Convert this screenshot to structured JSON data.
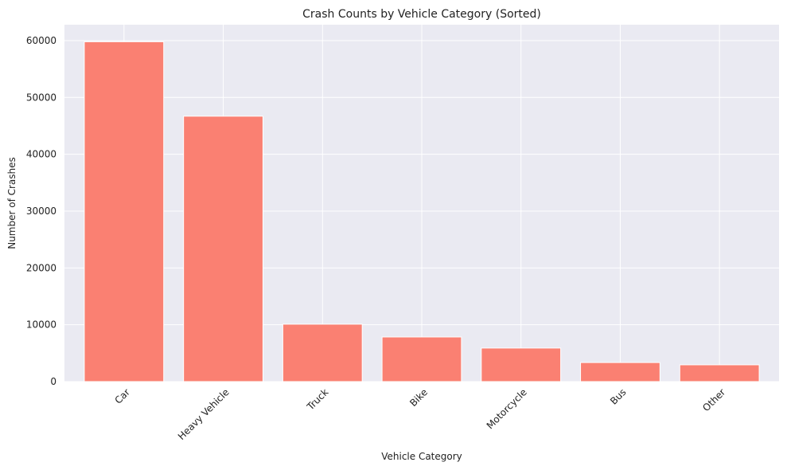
{
  "chart_data": {
    "type": "bar",
    "title": "Crash Counts by Vehicle Category (Sorted)",
    "xlabel": "Vehicle Category",
    "ylabel": "Number of Crashes",
    "categories": [
      "Car",
      "Heavy Vehicle",
      "Truck",
      "Bike",
      "Motorcycle",
      "Bus",
      "Other"
    ],
    "values": [
      59800,
      46700,
      10100,
      7850,
      5900,
      3350,
      2950
    ],
    "ylim": [
      0,
      62800
    ],
    "yticks": [
      0,
      10000,
      20000,
      30000,
      40000,
      50000,
      60000
    ],
    "grid": true,
    "bar_color": "#FA8072",
    "background_color": "#EAEAF2",
    "grid_color": "#FFFFFF"
  }
}
